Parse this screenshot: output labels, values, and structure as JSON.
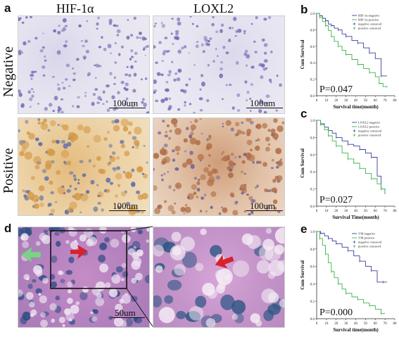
{
  "panel_letters": {
    "a": "a",
    "b": "b",
    "c": "c",
    "d": "d",
    "e": "e"
  },
  "column_headers": [
    "HIF-1α",
    "LOXL2"
  ],
  "row_headers": [
    "Negative",
    "Positive"
  ],
  "scale_labels": {
    "a_pos_left": "100um",
    "a_pos_right": "100um",
    "a_neg_left": "100um",
    "a_neg_right": "100um",
    "d": "50um"
  },
  "colors": {
    "negative_line": "#3a3f9e",
    "positive_line": "#3cb54a",
    "arrow_red": "#d6232b",
    "arrow_green": "#7fd08b"
  },
  "chart_data": [
    {
      "panel": "b",
      "type": "line",
      "ylabel": "Cum Survival",
      "xlabel": "Survival time(month)",
      "ylim": [
        0.0,
        1.0
      ],
      "yticks": [
        "0.0",
        "0.2",
        "0.4",
        "0.6",
        "0.8",
        "1.0"
      ],
      "xlim": [
        0,
        80
      ],
      "xticks": [
        "0",
        "10",
        "20",
        "30",
        "40",
        "50",
        "60",
        "70",
        "80"
      ],
      "legend": [
        "HIF-1α negative",
        "HIF-1α positive",
        "negative censored",
        "positive censored"
      ],
      "annotation": "P=0.047",
      "series": [
        {
          "name": "HIF-1α negative",
          "x": [
            0,
            3,
            6,
            9,
            12,
            15,
            18,
            22,
            26,
            30,
            36,
            42,
            48,
            54,
            60,
            66,
            72
          ],
          "y": [
            1.0,
            0.97,
            0.94,
            0.91,
            0.87,
            0.85,
            0.82,
            0.8,
            0.75,
            0.72,
            0.67,
            0.64,
            0.58,
            0.52,
            0.45,
            0.24,
            0.24
          ]
        },
        {
          "name": "HIF-1α positive",
          "x": [
            0,
            3,
            6,
            9,
            12,
            15,
            18,
            22,
            26,
            30,
            36,
            42,
            48,
            54,
            60,
            64,
            68,
            72
          ],
          "y": [
            1.0,
            0.95,
            0.9,
            0.85,
            0.79,
            0.72,
            0.66,
            0.6,
            0.55,
            0.5,
            0.44,
            0.38,
            0.33,
            0.28,
            0.23,
            0.15,
            0.11,
            0.11
          ]
        }
      ]
    },
    {
      "panel": "c",
      "type": "line",
      "ylabel": "Cum Survival",
      "xlabel": "Survival Time(month)",
      "ylim": [
        0.0,
        1.0
      ],
      "yticks": [
        "0.0",
        "0.2",
        "0.4",
        "0.6",
        "0.8",
        "1.0"
      ],
      "xlim": [
        0,
        80
      ],
      "xticks": [
        "0",
        "10",
        "20",
        "30",
        "40",
        "50",
        "60",
        "70",
        "80"
      ],
      "legend": [
        "LOXL2 negative",
        "LOXL2 positive",
        "negative censored",
        "positive censored"
      ],
      "annotation": "P=0.027",
      "series": [
        {
          "name": "LOXL2 negative",
          "x": [
            0,
            4,
            8,
            12,
            16,
            20,
            26,
            32,
            38,
            44,
            50,
            56,
            62,
            66,
            70
          ],
          "y": [
            1.0,
            0.96,
            0.92,
            0.88,
            0.85,
            0.8,
            0.76,
            0.72,
            0.7,
            0.66,
            0.62,
            0.57,
            0.35,
            0.2,
            0.14
          ]
        },
        {
          "name": "LOXL2 positive",
          "x": [
            0,
            4,
            8,
            12,
            16,
            20,
            26,
            32,
            38,
            44,
            50,
            56,
            62,
            66,
            70
          ],
          "y": [
            1.0,
            0.95,
            0.89,
            0.82,
            0.76,
            0.7,
            0.62,
            0.55,
            0.5,
            0.44,
            0.38,
            0.32,
            0.26,
            0.2,
            0.14
          ]
        }
      ]
    },
    {
      "panel": "e",
      "type": "line",
      "ylabel": "Cum Survival",
      "xlabel": "Survival time(month)",
      "ylim": [
        0.0,
        1.0
      ],
      "yticks": [
        "0.0",
        "0.2",
        "0.4",
        "0.6",
        "0.8",
        "1.0"
      ],
      "xlim": [
        0,
        80
      ],
      "xticks": [
        "0",
        "10",
        "20",
        "30",
        "40",
        "50",
        "60",
        "70",
        "80"
      ],
      "legend": [
        "VM negative",
        "VM positive",
        "negative censored",
        "positive censored"
      ],
      "annotation": "P=0.000",
      "series": [
        {
          "name": "VM negative",
          "x": [
            0,
            4,
            8,
            12,
            16,
            20,
            26,
            32,
            38,
            44,
            50,
            56,
            62,
            68,
            72
          ],
          "y": [
            1.0,
            0.98,
            0.95,
            0.92,
            0.89,
            0.86,
            0.82,
            0.78,
            0.72,
            0.66,
            0.6,
            0.55,
            0.42,
            0.42,
            0.42
          ]
        },
        {
          "name": "VM positive",
          "x": [
            0,
            3,
            6,
            9,
            12,
            15,
            18,
            22,
            26,
            30,
            36,
            42,
            48,
            54,
            60,
            66,
            70
          ],
          "y": [
            1.0,
            0.92,
            0.84,
            0.74,
            0.64,
            0.54,
            0.47,
            0.4,
            0.34,
            0.29,
            0.25,
            0.22,
            0.18,
            0.15,
            0.11,
            0.06,
            0.06
          ]
        }
      ]
    }
  ]
}
